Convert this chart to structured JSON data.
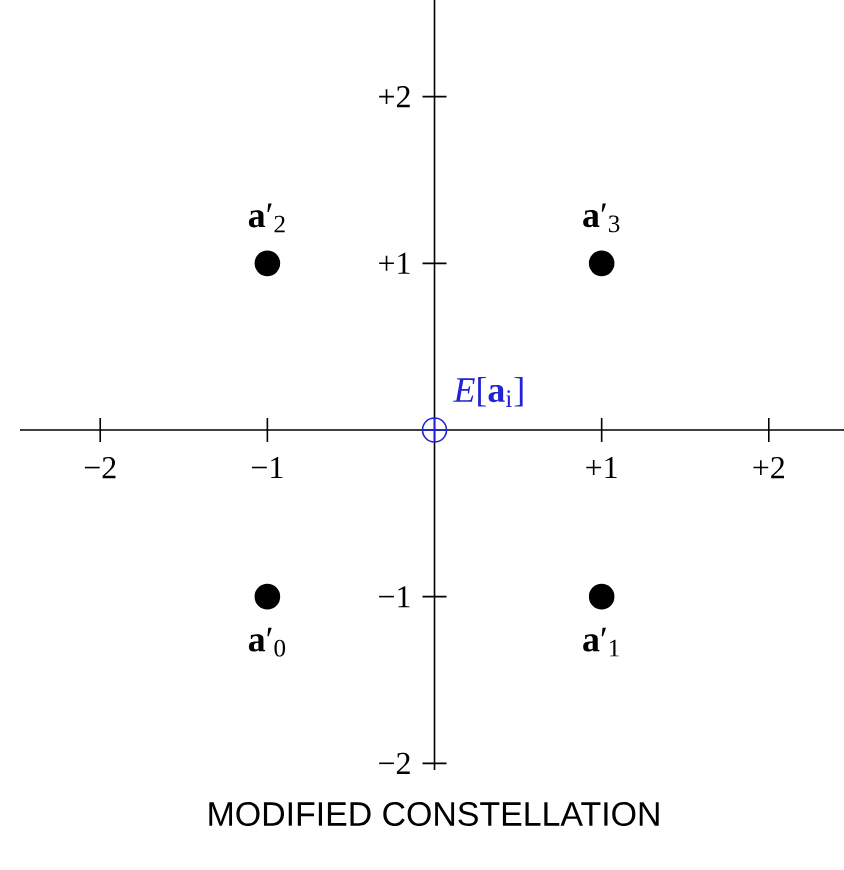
{
  "chart_data": {
    "type": "scatter",
    "title": "MODIFIED CONSTELLATION",
    "xlim": [
      -2.48,
      2.45
    ],
    "ylim": [
      -2.04,
      2.58
    ],
    "xticks": [
      {
        "value": -2,
        "label": "−2"
      },
      {
        "value": -1,
        "label": "−1"
      },
      {
        "value": 1,
        "label": "+1"
      },
      {
        "value": 2,
        "label": "+2"
      }
    ],
    "yticks": [
      {
        "value": -2,
        "label": "−2"
      },
      {
        "value": -1,
        "label": "−1"
      },
      {
        "value": 1,
        "label": "+1"
      },
      {
        "value": 2,
        "label": "+2"
      }
    ],
    "series": [
      {
        "name": "**a**′$_{0}$",
        "color": "#000000",
        "marker": "circle",
        "x": [
          -1
        ],
        "values": [
          -1
        ]
      },
      {
        "name": "**a**′$_{1}$",
        "color": "#000000",
        "marker": "circle",
        "x": [
          1
        ],
        "values": [
          -1
        ]
      },
      {
        "name": "**a**′$_{2}$",
        "color": "#000000",
        "marker": "circle",
        "x": [
          -1
        ],
        "values": [
          1
        ]
      },
      {
        "name": "**a**′$_{3}$",
        "color": "#000000",
        "marker": "circle",
        "x": [
          1
        ],
        "values": [
          1
        ]
      },
      {
        "name": "*E*[**a**$_{i}$]",
        "color": "#2323d6",
        "marker": "cross",
        "x": [
          0
        ],
        "values": [
          0
        ]
      }
    ]
  }
}
